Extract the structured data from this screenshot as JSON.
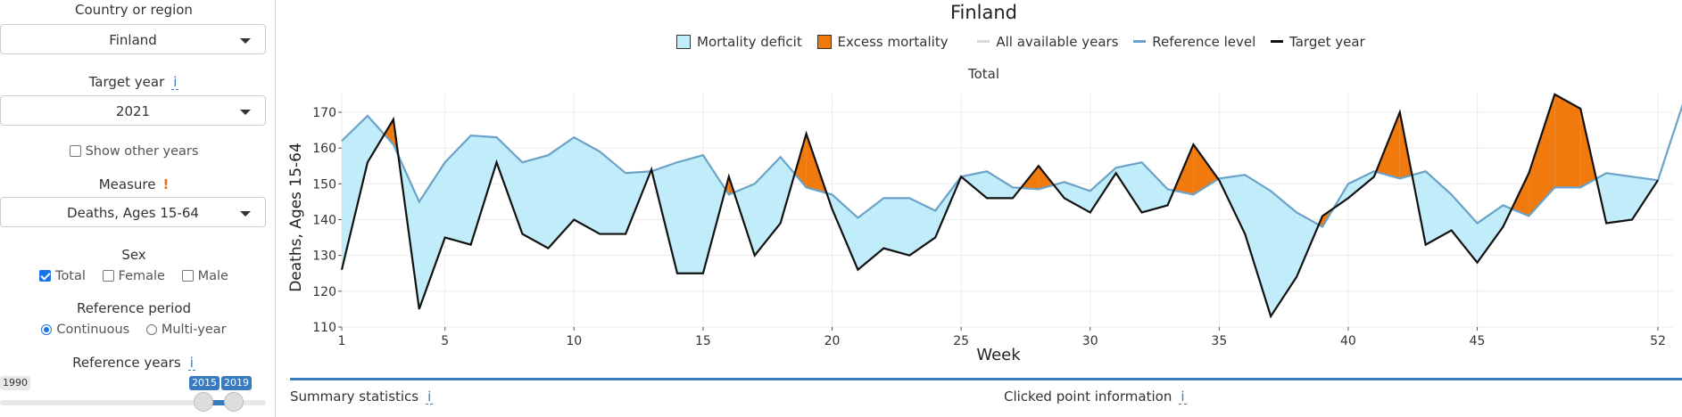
{
  "sidebar": {
    "country_label": "Country or region",
    "country_value": "Finland",
    "target_year_label": "Target year",
    "target_year_info": "i",
    "target_year_value": "2021",
    "show_other_years_label": "Show other years",
    "show_other_years_checked": false,
    "measure_label": "Measure",
    "measure_warn": "!",
    "measure_value": "Deaths, Ages 15-64",
    "sex_label": "Sex",
    "sex_options": [
      {
        "label": "Total",
        "checked": true
      },
      {
        "label": "Female",
        "checked": false
      },
      {
        "label": "Male",
        "checked": false
      }
    ],
    "ref_period_label": "Reference period",
    "ref_period_options": [
      {
        "label": "Continuous",
        "selected": true
      },
      {
        "label": "Multi-year",
        "selected": false
      }
    ],
    "ref_years_label": "Reference years",
    "ref_years_info": "i",
    "slider_min_label": "1990",
    "slider_from": "2015",
    "slider_to": "2019"
  },
  "legend": {
    "deficit": "Mortality deficit",
    "excess": "Excess mortality",
    "all_years": "All available years",
    "reference": "Reference level",
    "target": "Target year"
  },
  "colors": {
    "deficit_fill": "#c1ecf9",
    "excess_fill": "#f07a0e",
    "reference_line": "#6aa2c8",
    "target_line": "#111111",
    "all_years_line": "#d9d9d9",
    "accent": "#3a7abf"
  },
  "bottom": {
    "summary_label": "Summary statistics",
    "summary_info": "i",
    "clicked_label": "Clicked point information",
    "clicked_info": "i"
  },
  "chart_data": {
    "type": "area",
    "title": "Finland",
    "subtitle": "Total",
    "xlabel": "Week",
    "ylabel": "Deaths, Ages 15-64",
    "xlim": [
      1,
      53
    ],
    "ylim": [
      110,
      175
    ],
    "xticks": [
      1,
      5,
      10,
      15,
      20,
      25,
      30,
      35,
      40,
      45,
      52
    ],
    "yticks": [
      110,
      120,
      130,
      140,
      150,
      160,
      170
    ],
    "grid": true,
    "series": [
      {
        "name": "Reference level",
        "x": [
          1,
          2,
          3,
          4,
          5,
          6,
          7,
          8,
          9,
          10,
          11,
          12,
          13,
          14,
          15,
          16,
          17,
          18,
          19,
          20,
          21,
          22,
          23,
          24,
          25,
          26,
          27,
          28,
          29,
          30,
          31,
          32,
          33,
          34,
          35,
          36,
          37,
          38,
          39,
          40,
          41,
          42,
          43,
          44,
          45,
          46,
          47,
          48,
          49,
          50,
          51,
          52,
          53
        ],
        "values": [
          162,
          169,
          161,
          145,
          156,
          163.5,
          163,
          156,
          158,
          163,
          159,
          153,
          153.5,
          156,
          158,
          147,
          150,
          157.5,
          149,
          147,
          140.5,
          146,
          146,
          142.5,
          152,
          153.5,
          149,
          148.5,
          150.5,
          148,
          154.5,
          156,
          148.5,
          147,
          151.5,
          152.5,
          148,
          142,
          138,
          150,
          153.5,
          151.5,
          153.5,
          147,
          139,
          144,
          141,
          149,
          149,
          153,
          152,
          151,
          173
        ]
      },
      {
        "name": "Target year",
        "x": [
          1,
          2,
          3,
          4,
          5,
          6,
          7,
          8,
          9,
          10,
          11,
          12,
          13,
          14,
          15,
          16,
          17,
          18,
          19,
          20,
          21,
          22,
          23,
          24,
          25,
          26,
          27,
          28,
          29,
          30,
          31,
          32,
          33,
          34,
          35,
          36,
          37,
          38,
          39,
          40,
          41,
          42,
          43,
          44,
          45,
          46,
          47,
          48,
          49,
          50,
          51,
          52
        ],
        "values": [
          126,
          156,
          168,
          115,
          135,
          133,
          156,
          136,
          132,
          140,
          136,
          136,
          154,
          125,
          125,
          152,
          130,
          139,
          164,
          143,
          126,
          132,
          130,
          135,
          152,
          146,
          146,
          155,
          146,
          142,
          153,
          142,
          144,
          161,
          151,
          136,
          113,
          124,
          141,
          146,
          152,
          170,
          133,
          137,
          128,
          138,
          153,
          175,
          171,
          139,
          140,
          151
        ]
      }
    ]
  }
}
